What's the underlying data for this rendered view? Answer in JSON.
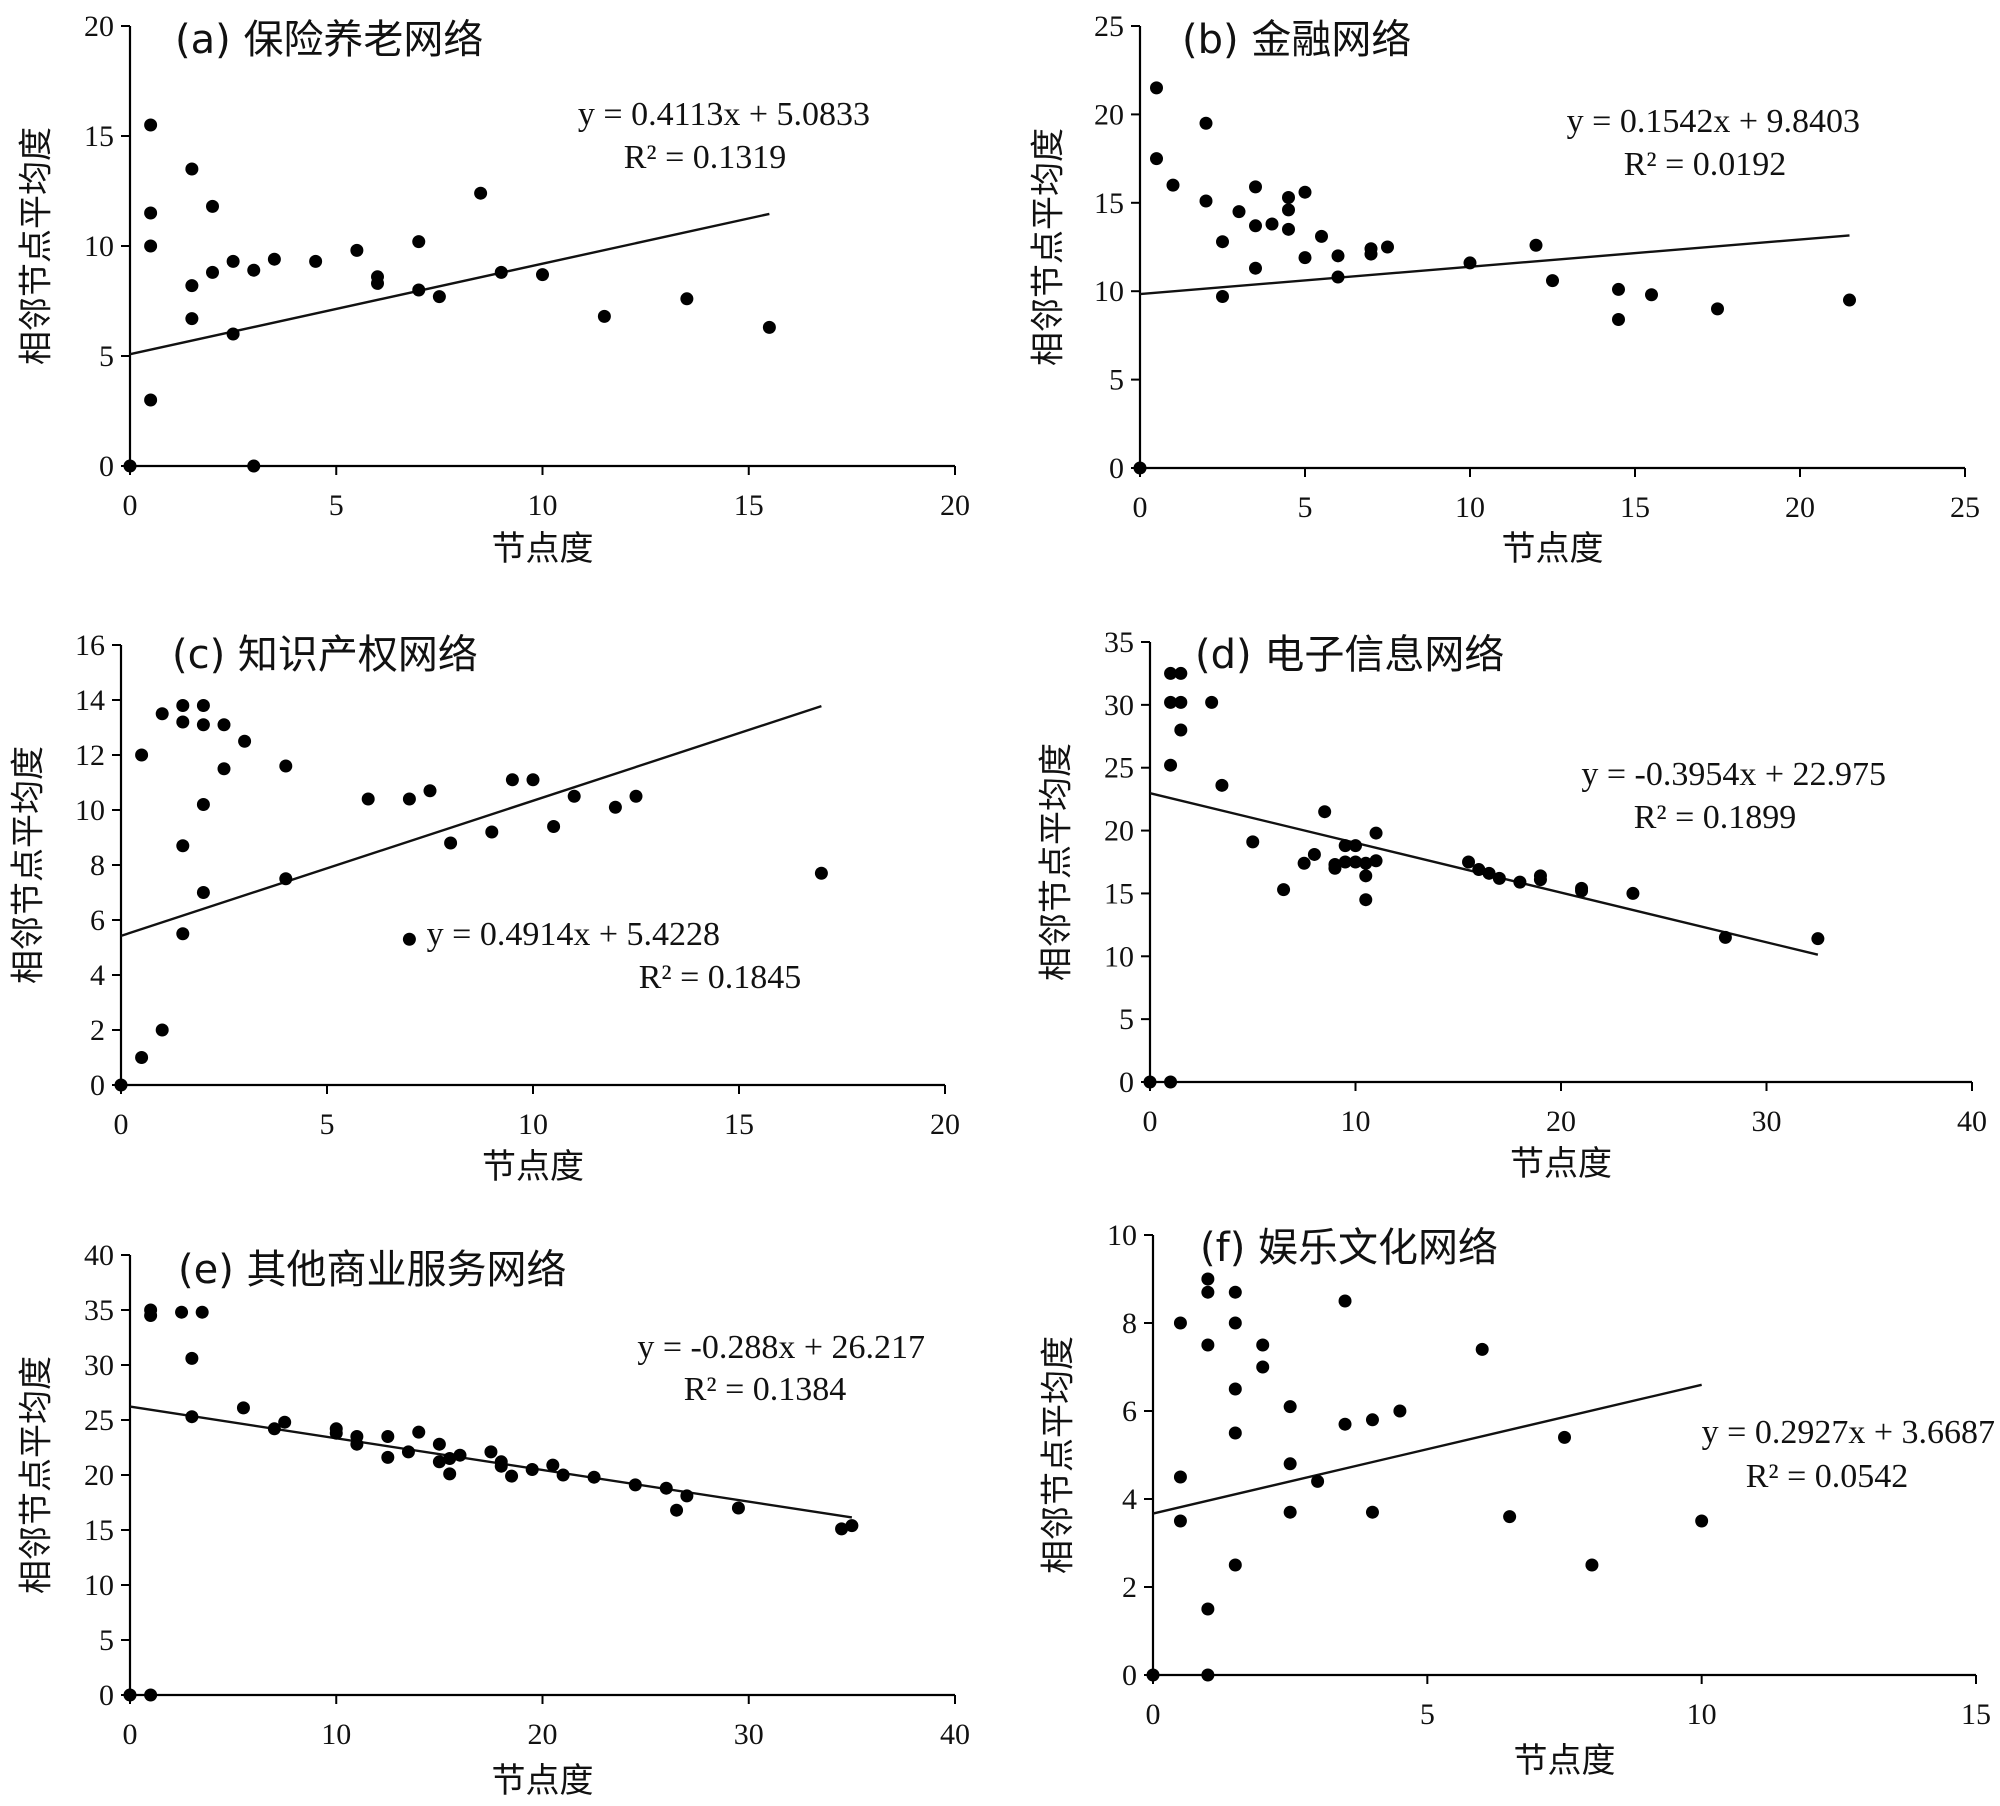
{
  "chart_data": [
    {
      "type": "scatter",
      "title": "(a) 保险养老网络",
      "xlabel": "节点度",
      "ylabel": "相邻节点平均度",
      "xlim": [
        0,
        20
      ],
      "ylim": [
        0,
        20
      ],
      "xticks": [
        "0",
        "5",
        "10",
        "15",
        "20"
      ],
      "yticks": [
        "0",
        "5",
        "10",
        "15",
        "20"
      ],
      "trendline": {
        "slope": 0.4113,
        "intercept": 5.0833,
        "x_range": [
          0,
          15.5
        ],
        "equation": "y = 0.4113x + 5.0833",
        "r2": "R² = 0.1319"
      },
      "points": [
        [
          0,
          0
        ],
        [
          0.5,
          15.5
        ],
        [
          0.5,
          11.5
        ],
        [
          0.5,
          10
        ],
        [
          0.5,
          3
        ],
        [
          1.5,
          13.5
        ],
        [
          1.5,
          8.2
        ],
        [
          1.5,
          6.7
        ],
        [
          2,
          11.8
        ],
        [
          2,
          8.8
        ],
        [
          2.5,
          9.3
        ],
        [
          2.5,
          6
        ],
        [
          3,
          8.9
        ],
        [
          3,
          0
        ],
        [
          3.5,
          9.4
        ],
        [
          4.5,
          9.3
        ],
        [
          5.5,
          9.8
        ],
        [
          6,
          8.6
        ],
        [
          6,
          8.3
        ],
        [
          7,
          10.2
        ],
        [
          7,
          8
        ],
        [
          7.5,
          7.7
        ],
        [
          8.5,
          12.4
        ],
        [
          9,
          8.8
        ],
        [
          10,
          8.7
        ],
        [
          11.5,
          6.8
        ],
        [
          13.5,
          7.6
        ],
        [
          15.5,
          6.3
        ]
      ]
    },
    {
      "type": "scatter",
      "title": "(b) 金融网络",
      "xlabel": "节点度",
      "ylabel": "相邻节点平均度",
      "xlim": [
        0,
        25
      ],
      "ylim": [
        0,
        25
      ],
      "xticks": [
        "0",
        "5",
        "10",
        "15",
        "20",
        "25"
      ],
      "yticks": [
        "0",
        "5",
        "10",
        "15",
        "20",
        "25"
      ],
      "trendline": {
        "slope": 0.1542,
        "intercept": 9.8403,
        "x_range": [
          0,
          21.5
        ],
        "equation": "y = 0.1542x + 9.8403",
        "r2": "R² = 0.0192"
      },
      "points": [
        [
          0,
          0
        ],
        [
          0.5,
          21.5
        ],
        [
          0.5,
          17.5
        ],
        [
          1,
          16
        ],
        [
          2,
          19.5
        ],
        [
          2,
          15.1
        ],
        [
          2.5,
          12.8
        ],
        [
          2.5,
          9.7
        ],
        [
          3,
          14.5
        ],
        [
          3.5,
          15.9
        ],
        [
          3.5,
          13.7
        ],
        [
          3.5,
          11.3
        ],
        [
          4,
          13.8
        ],
        [
          4.5,
          15.3
        ],
        [
          4.5,
          14.6
        ],
        [
          4.5,
          13.5
        ],
        [
          5,
          15.6
        ],
        [
          5,
          11.9
        ],
        [
          5.5,
          13.1
        ],
        [
          6,
          12
        ],
        [
          6,
          10.8
        ],
        [
          7,
          12.4
        ],
        [
          7,
          12.1
        ],
        [
          7.5,
          12.5
        ],
        [
          10,
          11.6
        ],
        [
          12,
          12.6
        ],
        [
          12.5,
          10.6
        ],
        [
          14.5,
          10.1
        ],
        [
          14.5,
          8.4
        ],
        [
          15.5,
          9.8
        ],
        [
          17.5,
          9
        ],
        [
          21.5,
          9.5
        ]
      ]
    },
    {
      "type": "scatter",
      "title": "(c) 知识产权网络",
      "xlabel": "节点度",
      "ylabel": "相邻节点平均度",
      "xlim": [
        0,
        20
      ],
      "ylim": [
        0,
        16
      ],
      "xticks": [
        "0",
        "5",
        "10",
        "15",
        "20"
      ],
      "yticks": [
        "0",
        "2",
        "4",
        "6",
        "8",
        "10",
        "12",
        "14",
        "16"
      ],
      "trendline": {
        "slope": 0.4914,
        "intercept": 5.4228,
        "x_range": [
          0,
          17
        ],
        "equation": "y = 0.4914x + 5.4228",
        "r2": "R² = 0.1845"
      },
      "points": [
        [
          0,
          0
        ],
        [
          0.5,
          12
        ],
        [
          0.5,
          1
        ],
        [
          1,
          13.5
        ],
        [
          1,
          2
        ],
        [
          1.5,
          13.8
        ],
        [
          1.5,
          13.2
        ],
        [
          1.5,
          8.7
        ],
        [
          1.5,
          5.5
        ],
        [
          2,
          13.8
        ],
        [
          2,
          13.1
        ],
        [
          2,
          10.2
        ],
        [
          2,
          7
        ],
        [
          2.5,
          13.1
        ],
        [
          2.5,
          11.5
        ],
        [
          3,
          12.5
        ],
        [
          4,
          11.6
        ],
        [
          4,
          7.5
        ],
        [
          6,
          10.4
        ],
        [
          7,
          10.4
        ],
        [
          7,
          5.3
        ],
        [
          7.5,
          10.7
        ],
        [
          8,
          8.8
        ],
        [
          9,
          9.2
        ],
        [
          9.5,
          11.1
        ],
        [
          10,
          11.1
        ],
        [
          10.5,
          9.4
        ],
        [
          11,
          10.5
        ],
        [
          12,
          10.1
        ],
        [
          12.5,
          10.5
        ],
        [
          17,
          7.7
        ]
      ]
    },
    {
      "type": "scatter",
      "title": "(d) 电子信息网络",
      "xlabel": "节点度",
      "ylabel": "相邻节点平均度",
      "xlim": [
        0,
        40
      ],
      "ylim": [
        0,
        35
      ],
      "xticks": [
        "0",
        "10",
        "20",
        "30",
        "40"
      ],
      "yticks": [
        "0",
        "5",
        "10",
        "15",
        "20",
        "25",
        "30",
        "35"
      ],
      "trendline": {
        "slope": -0.3954,
        "intercept": 22.975,
        "x_range": [
          0,
          32.5
        ],
        "equation": "y = -0.3954x + 22.975",
        "r2": "R² = 0.1899"
      },
      "points": [
        [
          0,
          0
        ],
        [
          1,
          0
        ],
        [
          1,
          32.5
        ],
        [
          1,
          30.2
        ],
        [
          1,
          25.2
        ],
        [
          1.5,
          32.5
        ],
        [
          1.5,
          30.2
        ],
        [
          1.5,
          28
        ],
        [
          3,
          30.2
        ],
        [
          3.5,
          23.6
        ],
        [
          5,
          19.1
        ],
        [
          6.5,
          15.3
        ],
        [
          7.5,
          17.4
        ],
        [
          8,
          18.1
        ],
        [
          8.5,
          21.5
        ],
        [
          9,
          17.3
        ],
        [
          9,
          17
        ],
        [
          9.5,
          18.8
        ],
        [
          9.5,
          17.5
        ],
        [
          10,
          18.8
        ],
        [
          10,
          17.5
        ],
        [
          10.5,
          17.4
        ],
        [
          10.5,
          16.4
        ],
        [
          10.5,
          14.5
        ],
        [
          11,
          19.8
        ],
        [
          11,
          17.6
        ],
        [
          15.5,
          17.5
        ],
        [
          16,
          16.9
        ],
        [
          16.5,
          16.6
        ],
        [
          17,
          16.2
        ],
        [
          18,
          15.9
        ],
        [
          19,
          16.4
        ],
        [
          19,
          16.1
        ],
        [
          21,
          15.4
        ],
        [
          21,
          15.2
        ],
        [
          23.5,
          15
        ],
        [
          28,
          11.5
        ],
        [
          32.5,
          11.4
        ]
      ]
    },
    {
      "type": "scatter",
      "title": "(e) 其他商业服务网络",
      "xlabel": "节点度",
      "ylabel": "相邻节点平均度",
      "xlim": [
        0,
        40
      ],
      "ylim": [
        0,
        40
      ],
      "xticks": [
        "0",
        "10",
        "20",
        "30",
        "40"
      ],
      "yticks": [
        "0",
        "5",
        "10",
        "15",
        "20",
        "25",
        "30",
        "35",
        "40"
      ],
      "trendline": {
        "slope": -0.288,
        "intercept": 26.217,
        "x_range": [
          0,
          35
        ],
        "equation": "y = -0.288x + 26.217",
        "r2": "R² = 0.1384"
      },
      "points": [
        [
          0,
          0
        ],
        [
          1,
          0
        ],
        [
          1,
          35
        ],
        [
          1,
          34.5
        ],
        [
          2.5,
          34.8
        ],
        [
          3,
          30.6
        ],
        [
          3,
          25.3
        ],
        [
          3.5,
          34.8
        ],
        [
          5.5,
          26.1
        ],
        [
          7,
          24.2
        ],
        [
          7.5,
          24.8
        ],
        [
          10,
          24.2
        ],
        [
          10,
          23.8
        ],
        [
          11,
          23.5
        ],
        [
          11,
          22.8
        ],
        [
          12.5,
          23.5
        ],
        [
          12.5,
          21.6
        ],
        [
          13.5,
          22.1
        ],
        [
          14,
          23.9
        ],
        [
          15,
          22.8
        ],
        [
          15,
          21.2
        ],
        [
          15.5,
          21.5
        ],
        [
          15.5,
          20.1
        ],
        [
          16,
          21.8
        ],
        [
          17.5,
          22.1
        ],
        [
          18,
          21.2
        ],
        [
          18,
          20.8
        ],
        [
          18.5,
          19.9
        ],
        [
          19.5,
          20.5
        ],
        [
          20.5,
          20.9
        ],
        [
          21,
          20
        ],
        [
          22.5,
          19.8
        ],
        [
          24.5,
          19.1
        ],
        [
          26,
          18.8
        ],
        [
          26.5,
          16.8
        ],
        [
          27,
          18.1
        ],
        [
          29.5,
          17
        ],
        [
          34.5,
          15.1
        ],
        [
          35,
          15.4
        ]
      ]
    },
    {
      "type": "scatter",
      "title": "(f) 娱乐文化网络",
      "xlabel": "节点度",
      "ylabel": "相邻节点平均度",
      "xlim": [
        0,
        15
      ],
      "ylim": [
        0,
        10
      ],
      "xticks": [
        "0",
        "5",
        "10",
        "15"
      ],
      "yticks": [
        "0",
        "2",
        "4",
        "6",
        "8",
        "10"
      ],
      "trendline": {
        "slope": 0.2927,
        "intercept": 3.6687,
        "x_range": [
          0,
          10
        ],
        "equation": "y = 0.2927x + 3.6687",
        "r2": "R² = 0.0542"
      },
      "points": [
        [
          0,
          0
        ],
        [
          0.5,
          8
        ],
        [
          0.5,
          4.5
        ],
        [
          0.5,
          3.5
        ],
        [
          1,
          9
        ],
        [
          1,
          8.7
        ],
        [
          1,
          7.5
        ],
        [
          1,
          1.5
        ],
        [
          1,
          0
        ],
        [
          1.5,
          8.7
        ],
        [
          1.5,
          8
        ],
        [
          1.5,
          6.5
        ],
        [
          1.5,
          5.5
        ],
        [
          1.5,
          2.5
        ],
        [
          2,
          7.5
        ],
        [
          2,
          7
        ],
        [
          2.5,
          6.1
        ],
        [
          2.5,
          4.8
        ],
        [
          2.5,
          3.7
        ],
        [
          3,
          4.4
        ],
        [
          3.5,
          8.5
        ],
        [
          3.5,
          5.7
        ],
        [
          4,
          5.8
        ],
        [
          4,
          3.7
        ],
        [
          4.5,
          6
        ],
        [
          6,
          7.4
        ],
        [
          6.5,
          3.6
        ],
        [
          7.5,
          5.4
        ],
        [
          8,
          2.5
        ],
        [
          10,
          3.5
        ]
      ]
    }
  ]
}
